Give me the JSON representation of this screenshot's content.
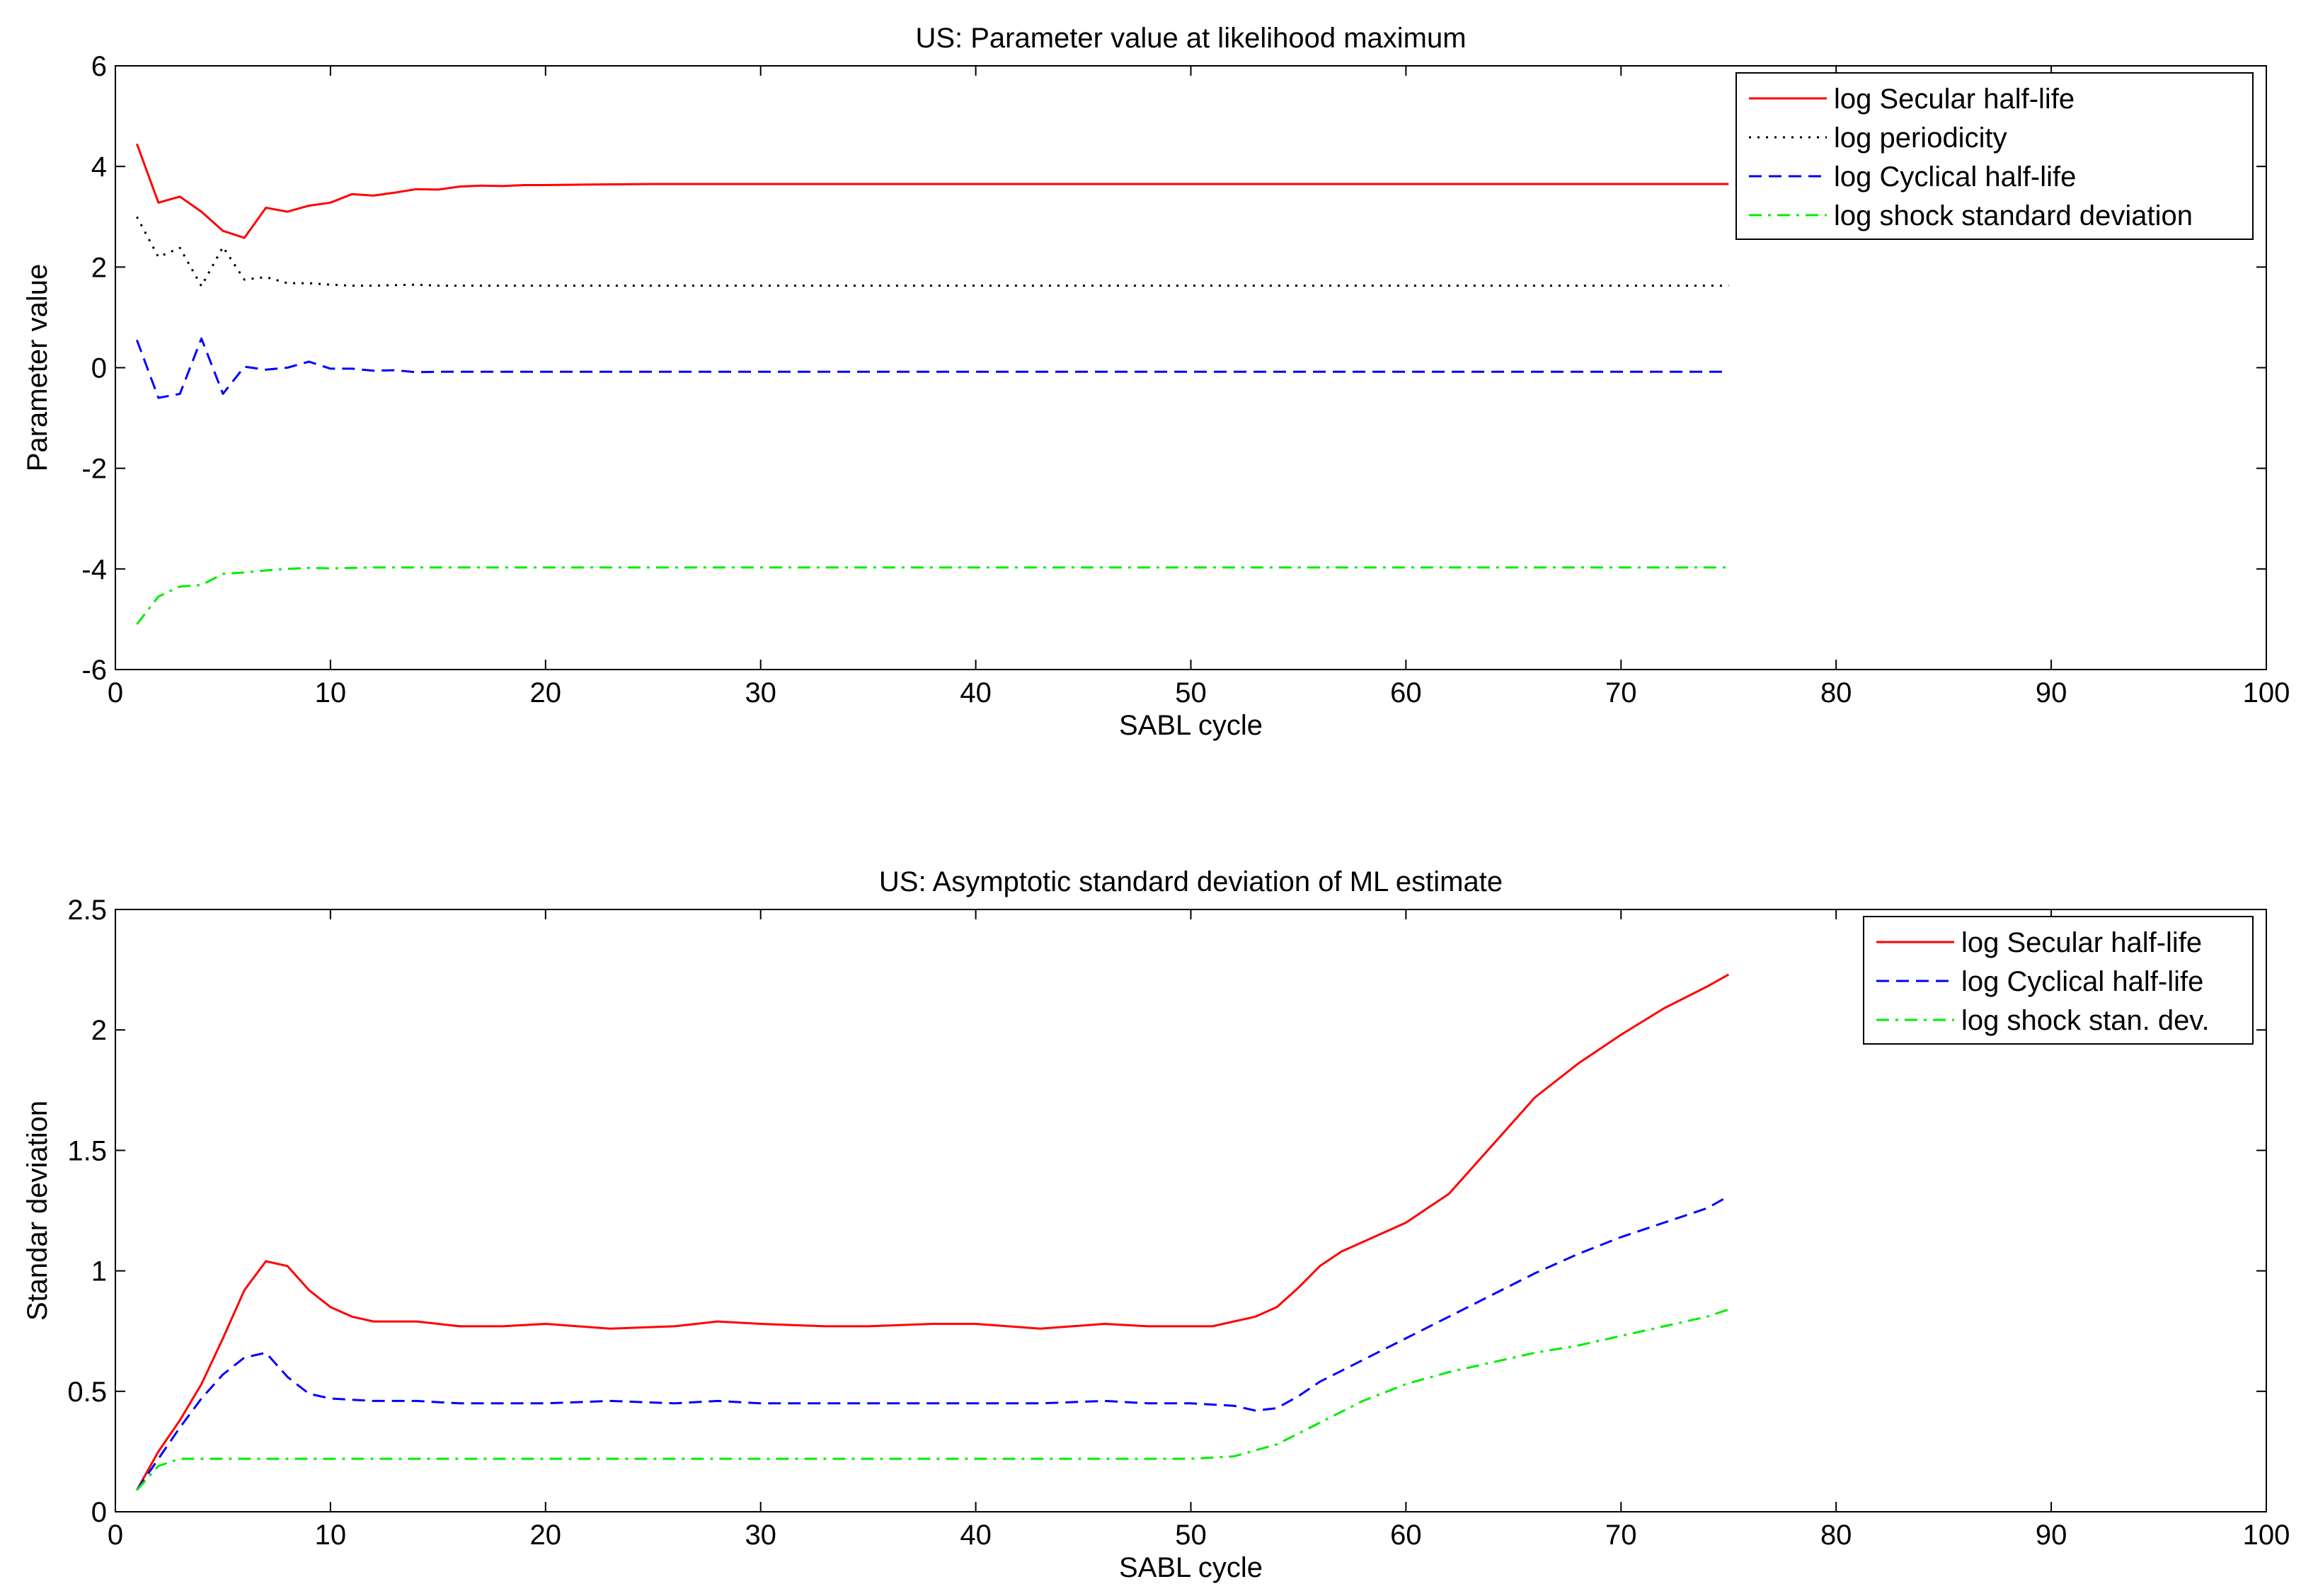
{
  "chart_data": [
    {
      "type": "line",
      "title": "US:  Parameter value at likelihood maximum",
      "xlabel": "SABL cycle",
      "ylabel": "Parameter value",
      "xlim": [
        0,
        100
      ],
      "ylim": [
        -6,
        6
      ],
      "xticks": [
        0,
        10,
        20,
        30,
        40,
        50,
        60,
        70,
        80,
        90,
        100
      ],
      "yticks": [
        -6,
        -4,
        -2,
        0,
        2,
        4,
        6
      ],
      "grid": false,
      "legend_position": "top-right",
      "series": [
        {
          "name": "log Secular half-life",
          "color": "#ff0000",
          "style": "solid",
          "x": [
            1,
            2,
            3,
            4,
            5,
            6,
            7,
            8,
            9,
            10,
            11,
            12,
            13,
            14,
            15,
            16,
            17,
            18,
            19,
            20,
            22,
            25,
            30,
            40,
            50,
            60,
            70,
            75
          ],
          "y": [
            4.45,
            3.28,
            3.4,
            3.1,
            2.72,
            2.58,
            3.18,
            3.1,
            3.22,
            3.28,
            3.45,
            3.42,
            3.48,
            3.55,
            3.54,
            3.6,
            3.62,
            3.61,
            3.63,
            3.63,
            3.64,
            3.65,
            3.65,
            3.65,
            3.65,
            3.65,
            3.65,
            3.65
          ]
        },
        {
          "name": "log periodicity",
          "color": "#000000",
          "style": "dotted",
          "x": [
            1,
            2,
            3,
            4,
            5,
            6,
            7,
            8,
            9,
            10,
            11,
            12,
            13,
            14,
            15,
            20,
            25,
            30,
            40,
            50,
            60,
            70,
            75
          ],
          "y": [
            3.0,
            2.2,
            2.38,
            1.62,
            2.4,
            1.75,
            1.8,
            1.68,
            1.68,
            1.65,
            1.63,
            1.63,
            1.64,
            1.65,
            1.63,
            1.63,
            1.63,
            1.63,
            1.63,
            1.63,
            1.63,
            1.63,
            1.63
          ]
        },
        {
          "name": "log Cyclical half-life",
          "color": "#0000ff",
          "style": "dashed",
          "x": [
            1,
            2,
            3,
            4,
            5,
            6,
            7,
            8,
            9,
            10,
            11,
            12,
            13,
            14,
            15,
            20,
            25,
            30,
            40,
            50,
            60,
            70,
            75
          ],
          "y": [
            0.55,
            -0.6,
            -0.52,
            0.58,
            -0.52,
            0.02,
            -0.04,
            0.0,
            0.12,
            -0.02,
            -0.02,
            -0.06,
            -0.05,
            -0.09,
            -0.08,
            -0.08,
            -0.08,
            -0.08,
            -0.08,
            -0.08,
            -0.08,
            -0.08,
            -0.08
          ]
        },
        {
          "name": "log shock standard deviation",
          "color": "#00ee00",
          "style": "dashdot",
          "x": [
            1,
            2,
            3,
            4,
            5,
            6,
            7,
            8,
            9,
            10,
            11,
            12,
            14,
            16,
            20,
            25,
            30,
            40,
            50,
            60,
            70,
            75
          ],
          "y": [
            -5.1,
            -4.55,
            -4.35,
            -4.32,
            -4.1,
            -4.07,
            -4.03,
            -4.0,
            -3.98,
            -3.99,
            -3.98,
            -3.97,
            -3.97,
            -3.97,
            -3.97,
            -3.97,
            -3.97,
            -3.97,
            -3.97,
            -3.97,
            -3.97,
            -3.97
          ]
        }
      ]
    },
    {
      "type": "line",
      "title": "US:  Asymptotic standard deviation of ML estimate",
      "xlabel": "SABL cycle",
      "ylabel": "Standar deviation",
      "xlim": [
        0,
        100
      ],
      "ylim": [
        0,
        2.5
      ],
      "xticks": [
        0,
        10,
        20,
        30,
        40,
        50,
        60,
        70,
        80,
        90,
        100
      ],
      "yticks": [
        0,
        0.5,
        1,
        1.5,
        2,
        2.5
      ],
      "grid": false,
      "legend_position": "top-right",
      "series": [
        {
          "name": "log Secular half-life",
          "color": "#ff0000",
          "style": "solid",
          "x": [
            1,
            2,
            3,
            4,
            5,
            6,
            7,
            8,
            9,
            10,
            11,
            12,
            14,
            16,
            18,
            20,
            23,
            26,
            28,
            30,
            33,
            35,
            38,
            40,
            43,
            46,
            48,
            50,
            51,
            52,
            53,
            54,
            55,
            56,
            57,
            58,
            60,
            62,
            64,
            66,
            68,
            70,
            72,
            74,
            75
          ],
          "y": [
            0.09,
            0.25,
            0.38,
            0.53,
            0.72,
            0.92,
            1.04,
            1.02,
            0.92,
            0.85,
            0.81,
            0.79,
            0.79,
            0.77,
            0.77,
            0.78,
            0.76,
            0.77,
            0.79,
            0.78,
            0.77,
            0.77,
            0.78,
            0.78,
            0.76,
            0.78,
            0.77,
            0.77,
            0.77,
            0.79,
            0.81,
            0.85,
            0.93,
            1.02,
            1.08,
            1.12,
            1.2,
            1.32,
            1.52,
            1.72,
            1.86,
            1.98,
            2.09,
            2.18,
            2.23
          ]
        },
        {
          "name": "log Cyclical half-life",
          "color": "#0000ff",
          "style": "dashed",
          "x": [
            1,
            2,
            3,
            4,
            5,
            6,
            7,
            8,
            9,
            10,
            12,
            14,
            16,
            18,
            20,
            23,
            26,
            28,
            30,
            33,
            35,
            38,
            40,
            43,
            46,
            48,
            50,
            52,
            53,
            54,
            55,
            56,
            58,
            60,
            62,
            64,
            66,
            68,
            70,
            72,
            74,
            75
          ],
          "y": [
            0.09,
            0.22,
            0.35,
            0.47,
            0.57,
            0.64,
            0.66,
            0.56,
            0.49,
            0.47,
            0.46,
            0.46,
            0.45,
            0.45,
            0.45,
            0.46,
            0.45,
            0.46,
            0.45,
            0.45,
            0.45,
            0.45,
            0.45,
            0.45,
            0.46,
            0.45,
            0.45,
            0.44,
            0.42,
            0.43,
            0.48,
            0.54,
            0.63,
            0.72,
            0.81,
            0.9,
            0.99,
            1.07,
            1.14,
            1.2,
            1.26,
            1.31
          ]
        },
        {
          "name": "log shock stan. dev.",
          "color": "#00ee00",
          "style": "dashdot",
          "x": [
            1,
            2,
            3,
            4,
            5,
            6,
            7,
            8,
            9,
            10,
            15,
            20,
            25,
            30,
            35,
            40,
            45,
            50,
            52,
            54,
            56,
            58,
            60,
            62,
            64,
            66,
            68,
            70,
            72,
            74,
            75
          ],
          "y": [
            0.09,
            0.19,
            0.22,
            0.22,
            0.22,
            0.22,
            0.22,
            0.22,
            0.22,
            0.22,
            0.22,
            0.22,
            0.22,
            0.22,
            0.22,
            0.22,
            0.22,
            0.22,
            0.23,
            0.28,
            0.37,
            0.46,
            0.53,
            0.58,
            0.62,
            0.66,
            0.69,
            0.73,
            0.77,
            0.81,
            0.84
          ]
        }
      ]
    }
  ]
}
